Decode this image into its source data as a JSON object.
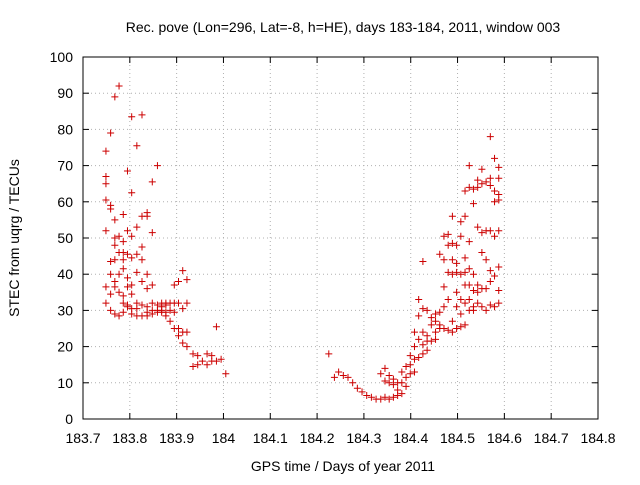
{
  "chart_data": {
    "type": "scatter",
    "title": "Rec. pove (Lon=296, Lat=-8, h=HE), days 183-184, 2011, window 003",
    "xlabel": "GPS time / Days of year 2011",
    "ylabel": "STEC from uqrg / TECUs",
    "xlim": [
      183.7,
      184.8
    ],
    "ylim": [
      0,
      100
    ],
    "xticks": [
      183.7,
      183.8,
      183.9,
      184,
      184.1,
      184.2,
      184.3,
      184.4,
      184.5,
      184.6,
      184.7,
      184.8
    ],
    "xtick_labels": [
      "183.7",
      "183.8",
      "183.9",
      "184",
      "184.1",
      "184.2",
      "184.3",
      "184.4",
      "184.5",
      "184.6",
      "184.7",
      "184.8"
    ],
    "yticks": [
      0,
      10,
      20,
      30,
      40,
      50,
      60,
      70,
      80,
      90,
      100
    ],
    "ytick_labels": [
      "0",
      "10",
      "20",
      "30",
      "40",
      "50",
      "60",
      "70",
      "80",
      "90",
      "100"
    ],
    "grid": true,
    "marker": "plus",
    "color": "#cc0000",
    "series": [
      {
        "points": [
          [
            183.749,
            74.0
          ],
          [
            183.749,
            67.0
          ],
          [
            183.749,
            65.0
          ],
          [
            183.749,
            60.5
          ],
          [
            183.749,
            52.0
          ],
          [
            183.749,
            36.5
          ],
          [
            183.749,
            32.0
          ],
          [
            183.759,
            79.0
          ],
          [
            183.759,
            59.0
          ],
          [
            183.759,
            58.0
          ],
          [
            183.759,
            43.5
          ],
          [
            183.759,
            40.0
          ],
          [
            183.759,
            34.5
          ],
          [
            183.759,
            30.0
          ],
          [
            183.768,
            89.0
          ],
          [
            183.768,
            55.0
          ],
          [
            183.768,
            50.0
          ],
          [
            183.768,
            48.0
          ],
          [
            183.768,
            44.0
          ],
          [
            183.768,
            38.0
          ],
          [
            183.768,
            36.5
          ],
          [
            183.768,
            29.0
          ],
          [
            183.777,
            92.0
          ],
          [
            183.777,
            50.5
          ],
          [
            183.777,
            46.0
          ],
          [
            183.777,
            40.0
          ],
          [
            183.777,
            35.0
          ],
          [
            183.777,
            28.5
          ],
          [
            183.786,
            56.5
          ],
          [
            183.786,
            49.0
          ],
          [
            183.786,
            46.0
          ],
          [
            183.786,
            44.0
          ],
          [
            183.786,
            41.5
          ],
          [
            183.786,
            34.0
          ],
          [
            183.786,
            32.0
          ],
          [
            183.786,
            29.5
          ],
          [
            183.795,
            68.5
          ],
          [
            183.795,
            52.0
          ],
          [
            183.795,
            45.5
          ],
          [
            183.795,
            39.0
          ],
          [
            183.795,
            36.5
          ],
          [
            183.795,
            31.5
          ],
          [
            183.795,
            31.0
          ],
          [
            183.804,
            83.5
          ],
          [
            183.804,
            62.5
          ],
          [
            183.804,
            50.5
          ],
          [
            183.804,
            44.5
          ],
          [
            183.804,
            37.0
          ],
          [
            183.804,
            34.5
          ],
          [
            183.804,
            30.5
          ],
          [
            183.804,
            29.0
          ],
          [
            183.815,
            75.5
          ],
          [
            183.815,
            53.0
          ],
          [
            183.815,
            45.5
          ],
          [
            183.815,
            40.5
          ],
          [
            183.815,
            32.0
          ],
          [
            183.815,
            30.5
          ],
          [
            183.815,
            28.5
          ],
          [
            183.826,
            84.0
          ],
          [
            183.826,
            56.0
          ],
          [
            183.826,
            47.5
          ],
          [
            183.826,
            44.0
          ],
          [
            183.826,
            38.0
          ],
          [
            183.826,
            31.5
          ],
          [
            183.826,
            28.5
          ],
          [
            183.837,
            57.0
          ],
          [
            183.837,
            56.0
          ],
          [
            183.837,
            40.0
          ],
          [
            183.837,
            36.0
          ],
          [
            183.837,
            31.0
          ],
          [
            183.837,
            29.5
          ],
          [
            183.837,
            28.5
          ],
          [
            183.848,
            65.5
          ],
          [
            183.848,
            51.5
          ],
          [
            183.848,
            37.0
          ],
          [
            183.848,
            32.0
          ],
          [
            183.848,
            30.0
          ],
          [
            183.848,
            29.0
          ],
          [
            183.859,
            70.0
          ],
          [
            183.859,
            31.5
          ],
          [
            183.859,
            30.0
          ],
          [
            183.859,
            29.5
          ],
          [
            183.868,
            32.0
          ],
          [
            183.868,
            31.0
          ],
          [
            183.868,
            30.0
          ],
          [
            183.868,
            29.5
          ],
          [
            183.877,
            32.0
          ],
          [
            183.877,
            31.5
          ],
          [
            183.877,
            29.5
          ],
          [
            183.877,
            28.5
          ],
          [
            183.886,
            32.0
          ],
          [
            183.886,
            30.0
          ],
          [
            183.886,
            27.0
          ],
          [
            183.895,
            37.0
          ],
          [
            183.895,
            32.0
          ],
          [
            183.895,
            29.5
          ],
          [
            183.895,
            25.0
          ],
          [
            183.904,
            38.0
          ],
          [
            183.904,
            32.0
          ],
          [
            183.904,
            25.0
          ],
          [
            183.904,
            23.0
          ],
          [
            183.913,
            41.0
          ],
          [
            183.913,
            30.5
          ],
          [
            183.913,
            24.0
          ],
          [
            183.913,
            21.0
          ],
          [
            183.922,
            38.5
          ],
          [
            183.922,
            32.0
          ],
          [
            183.922,
            24.0
          ],
          [
            183.922,
            20.0
          ],
          [
            183.935,
            18.0
          ],
          [
            183.935,
            14.5
          ],
          [
            183.945,
            17.5
          ],
          [
            183.945,
            15.0
          ],
          [
            183.955,
            16.0
          ],
          [
            183.965,
            18.0
          ],
          [
            183.965,
            15.0
          ],
          [
            183.975,
            17.5
          ],
          [
            183.975,
            16.0
          ],
          [
            183.985,
            25.5
          ],
          [
            183.985,
            16.0
          ],
          [
            183.995,
            16.5
          ],
          [
            184.005,
            12.5
          ],
          [
            184.225,
            18.0
          ],
          [
            184.237,
            11.5
          ],
          [
            184.246,
            13.0
          ],
          [
            184.256,
            12.0
          ],
          [
            184.266,
            11.5
          ],
          [
            184.276,
            10.0
          ],
          [
            184.286,
            8.5
          ],
          [
            184.296,
            7.5
          ],
          [
            184.306,
            6.5
          ],
          [
            184.316,
            6.0
          ],
          [
            184.326,
            5.5
          ],
          [
            184.336,
            12.5
          ],
          [
            184.336,
            5.5
          ],
          [
            184.345,
            14.0
          ],
          [
            184.345,
            10.5
          ],
          [
            184.345,
            6.0
          ],
          [
            184.354,
            12.0
          ],
          [
            184.354,
            10.0
          ],
          [
            184.354,
            5.5
          ],
          [
            184.363,
            11.0
          ],
          [
            184.363,
            9.5
          ],
          [
            184.363,
            6.0
          ],
          [
            184.372,
            10.0
          ],
          [
            184.372,
            8.0
          ],
          [
            184.372,
            6.5
          ],
          [
            184.381,
            13.0
          ],
          [
            184.381,
            10.0
          ],
          [
            184.381,
            7.0
          ],
          [
            184.39,
            14.5
          ],
          [
            184.39,
            11.5
          ],
          [
            184.39,
            9.0
          ],
          [
            184.399,
            17.5
          ],
          [
            184.399,
            15.0
          ],
          [
            184.399,
            12.5
          ],
          [
            184.408,
            24.0
          ],
          [
            184.408,
            20.0
          ],
          [
            184.408,
            16.5
          ],
          [
            184.408,
            13.0
          ],
          [
            184.417,
            33.0
          ],
          [
            184.417,
            28.5
          ],
          [
            184.417,
            22.0
          ],
          [
            184.417,
            17.0
          ],
          [
            184.426,
            43.5
          ],
          [
            184.426,
            30.5
          ],
          [
            184.426,
            24.0
          ],
          [
            184.426,
            20.5
          ],
          [
            184.426,
            18.0
          ],
          [
            184.435,
            30.0
          ],
          [
            184.435,
            23.0
          ],
          [
            184.435,
            21.5
          ],
          [
            184.435,
            19.0
          ],
          [
            184.444,
            28.0
          ],
          [
            184.444,
            26.0
          ],
          [
            184.444,
            21.5
          ],
          [
            184.453,
            29.0
          ],
          [
            184.453,
            27.0
          ],
          [
            184.453,
            24.0
          ],
          [
            184.453,
            22.0
          ],
          [
            184.462,
            45.5
          ],
          [
            184.462,
            29.5
          ],
          [
            184.462,
            26.0
          ],
          [
            184.462,
            25.0
          ],
          [
            184.471,
            50.5
          ],
          [
            184.471,
            44.0
          ],
          [
            184.471,
            36.5
          ],
          [
            184.471,
            31.0
          ],
          [
            184.471,
            25.0
          ],
          [
            184.48,
            51.0
          ],
          [
            184.48,
            48.0
          ],
          [
            184.48,
            40.5
          ],
          [
            184.48,
            33.0
          ],
          [
            184.48,
            24.5
          ],
          [
            184.489,
            56.0
          ],
          [
            184.489,
            48.5
          ],
          [
            184.489,
            44.0
          ],
          [
            184.489,
            40.0
          ],
          [
            184.489,
            27.0
          ],
          [
            184.489,
            24.0
          ],
          [
            184.498,
            48.0
          ],
          [
            184.498,
            43.0
          ],
          [
            184.498,
            40.5
          ],
          [
            184.498,
            35.0
          ],
          [
            184.498,
            31.0
          ],
          [
            184.498,
            25.0
          ],
          [
            184.507,
            54.5
          ],
          [
            184.507,
            50.5
          ],
          [
            184.507,
            40.0
          ],
          [
            184.507,
            33.0
          ],
          [
            184.507,
            29.0
          ],
          [
            184.507,
            25.5
          ],
          [
            184.516,
            63.0
          ],
          [
            184.516,
            56.0
          ],
          [
            184.516,
            44.5
          ],
          [
            184.516,
            40.5
          ],
          [
            184.516,
            37.0
          ],
          [
            184.516,
            32.0
          ],
          [
            184.516,
            26.0
          ],
          [
            184.525,
            70.0
          ],
          [
            184.525,
            64.0
          ],
          [
            184.525,
            49.0
          ],
          [
            184.525,
            41.5
          ],
          [
            184.525,
            37.0
          ],
          [
            184.525,
            33.0
          ],
          [
            184.525,
            30.0
          ],
          [
            184.534,
            63.5
          ],
          [
            184.534,
            59.5
          ],
          [
            184.534,
            40.0
          ],
          [
            184.534,
            35.5
          ],
          [
            184.534,
            31.0
          ],
          [
            184.534,
            30.0
          ],
          [
            184.543,
            66.0
          ],
          [
            184.543,
            64.0
          ],
          [
            184.543,
            53.0
          ],
          [
            184.543,
            37.0
          ],
          [
            184.543,
            35.0
          ],
          [
            184.543,
            32.0
          ],
          [
            184.552,
            69.0
          ],
          [
            184.552,
            65.0
          ],
          [
            184.552,
            51.5
          ],
          [
            184.552,
            46.0
          ],
          [
            184.552,
            36.0
          ],
          [
            184.552,
            31.0
          ],
          [
            184.561,
            65.5
          ],
          [
            184.561,
            52.0
          ],
          [
            184.561,
            44.0
          ],
          [
            184.561,
            36.0
          ],
          [
            184.561,
            30.0
          ],
          [
            184.57,
            78.0
          ],
          [
            184.57,
            66.5
          ],
          [
            184.57,
            64.5
          ],
          [
            184.57,
            52.0
          ],
          [
            184.57,
            41.0
          ],
          [
            184.57,
            38.0
          ],
          [
            184.57,
            31.5
          ],
          [
            184.579,
            72.0
          ],
          [
            184.579,
            63.0
          ],
          [
            184.579,
            60.0
          ],
          [
            184.579,
            50.5
          ],
          [
            184.579,
            39.5
          ],
          [
            184.579,
            31.0
          ],
          [
            184.588,
            69.5
          ],
          [
            184.588,
            66.5
          ],
          [
            184.588,
            62.0
          ],
          [
            184.588,
            60.5
          ],
          [
            184.588,
            52.0
          ],
          [
            184.588,
            42.0
          ],
          [
            184.588,
            35.5
          ],
          [
            184.588,
            32.0
          ]
        ]
      }
    ]
  }
}
